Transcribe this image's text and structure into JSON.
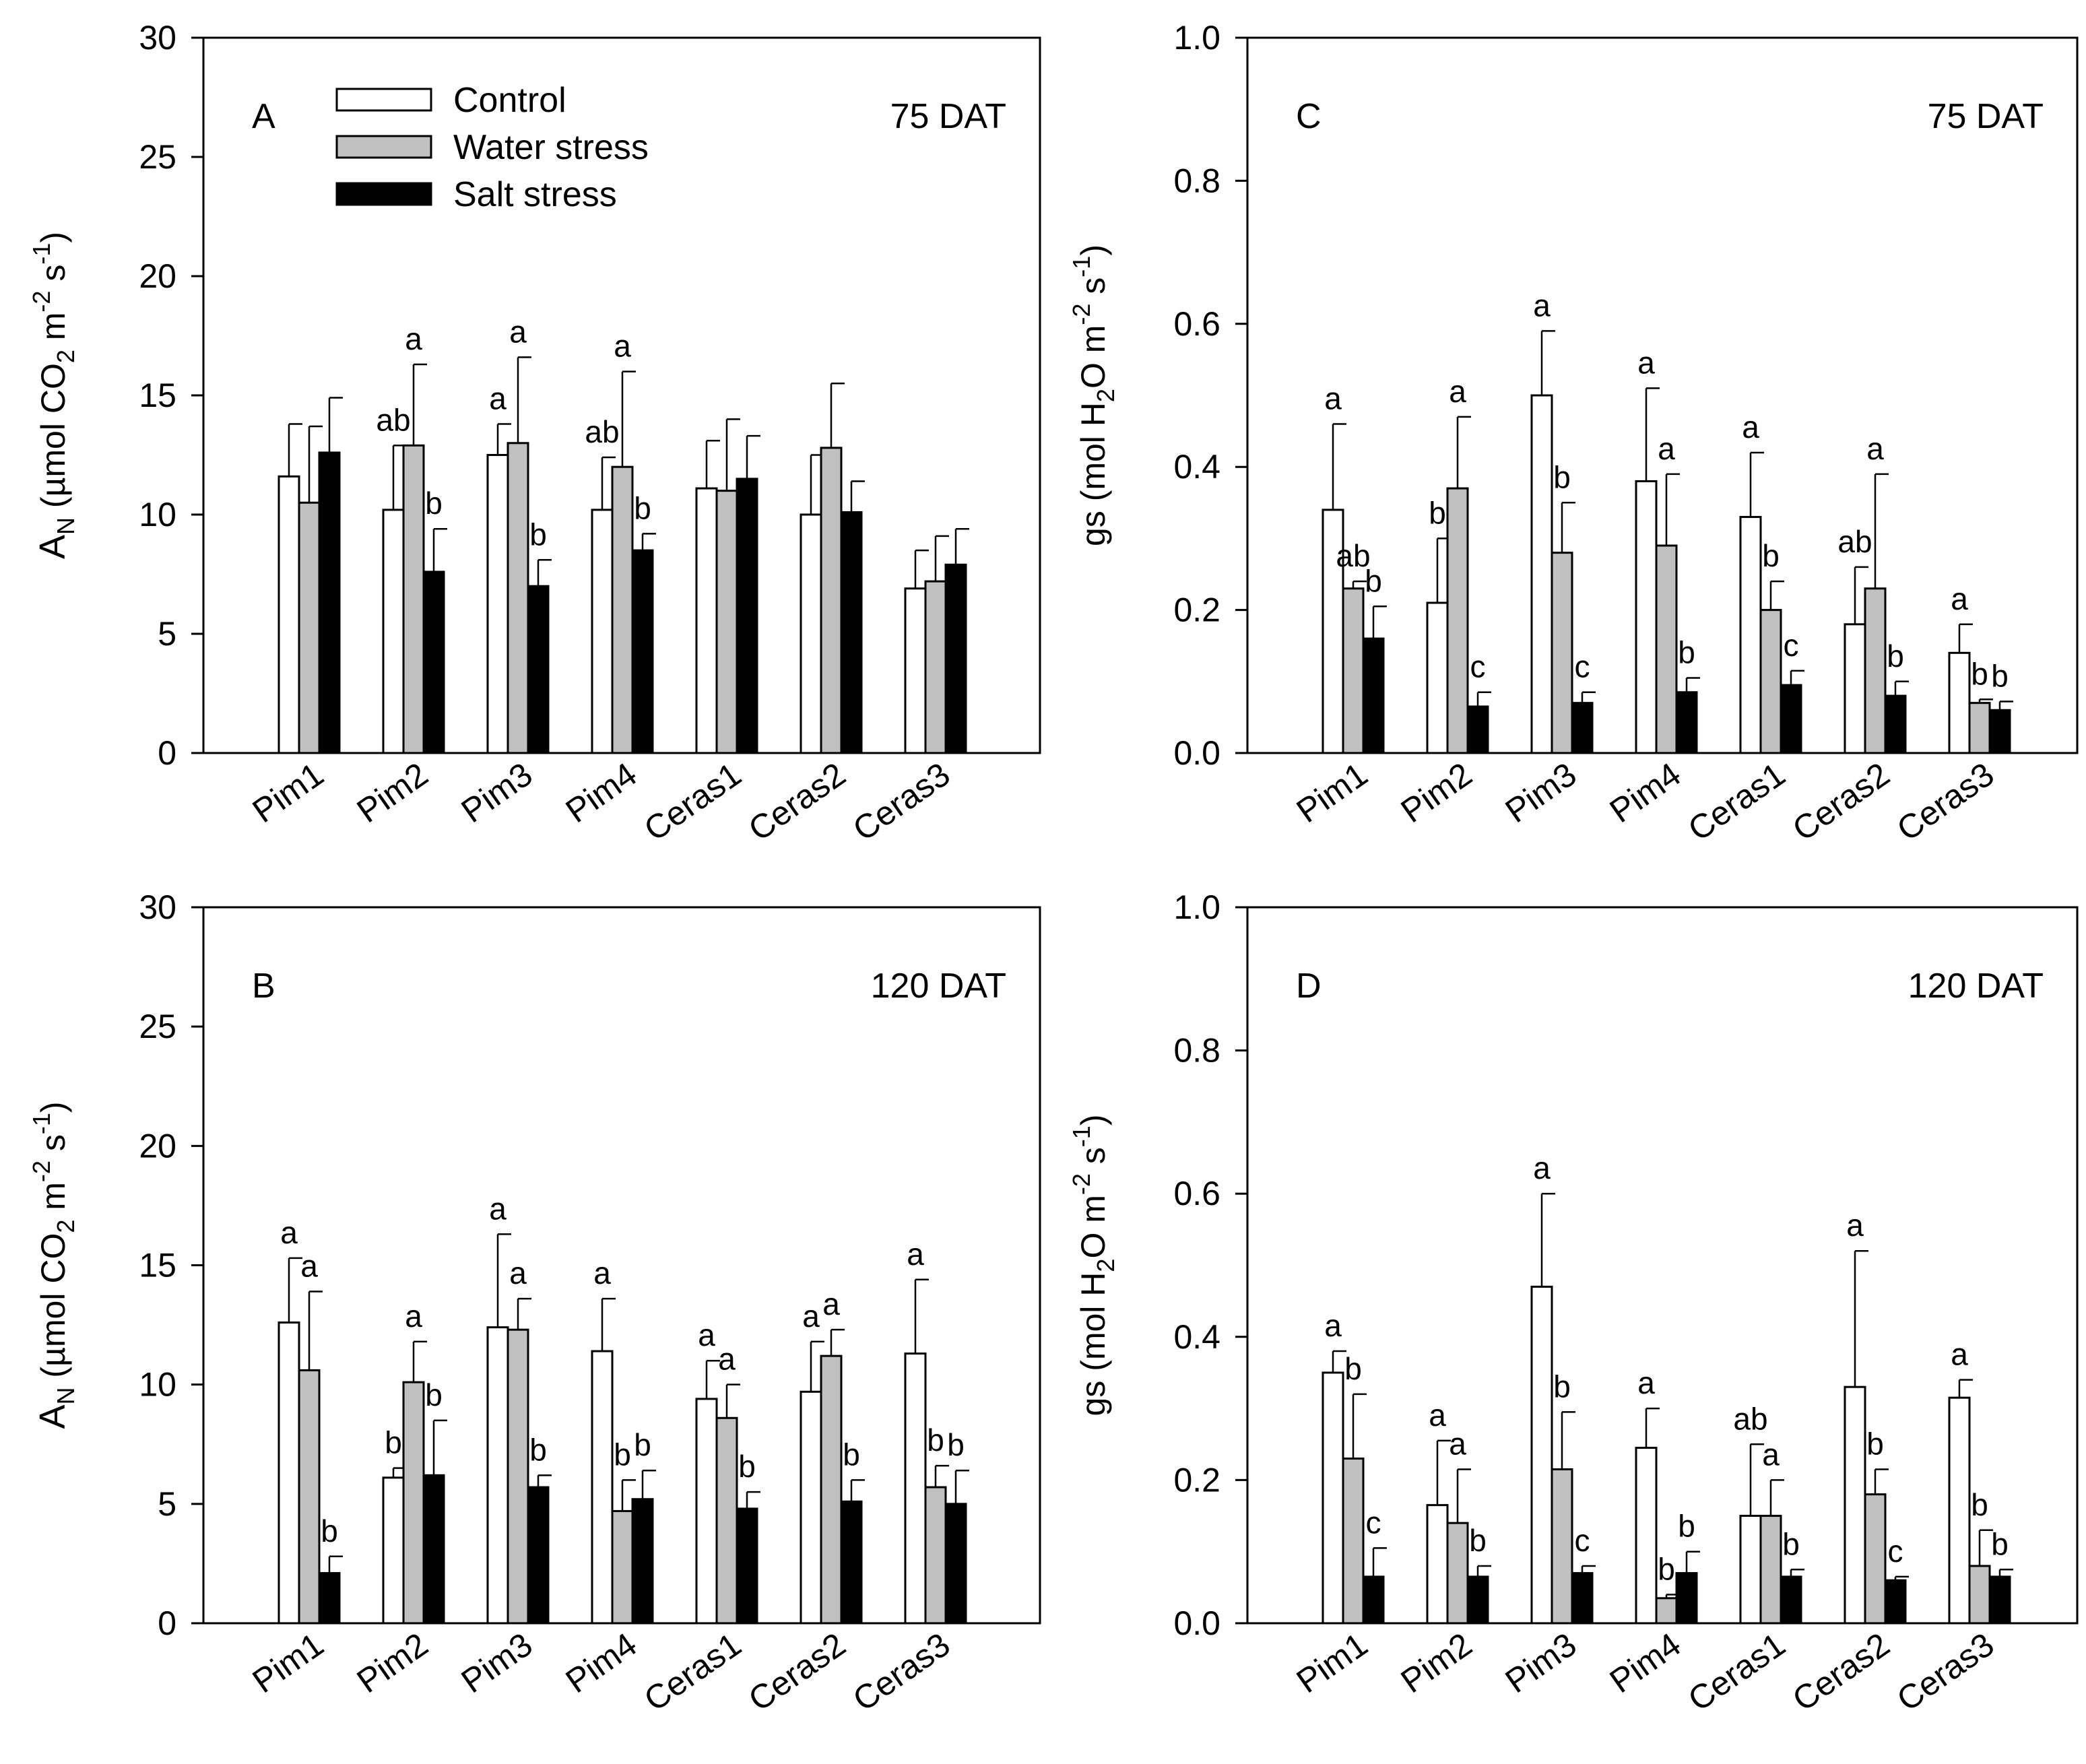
{
  "chart_data": [
    {
      "panel": "A",
      "type": "bar",
      "label": "A",
      "period": "75 DAT",
      "ylabel_main": "A",
      "ylabel_sub": "N",
      "ylabel_rest": " (µmol CO",
      "ylabel_sub2": "2",
      "ylabel_rest2": " m",
      "ylabel_sup1": "-2",
      "ylabel_rest3": " s",
      "ylabel_sup2": "-1",
      "ylabel_end": ")",
      "ylim": [
        0,
        30
      ],
      "yticks": [
        "0",
        "5",
        "10",
        "15",
        "20",
        "25",
        "30"
      ],
      "categories": [
        "Pim1",
        "Pim2",
        "Pim3",
        "Pim4",
        "Ceras1",
        "Ceras2",
        "Ceras3"
      ],
      "series": [
        {
          "name": "Control",
          "values": [
            11.6,
            10.2,
            12.5,
            10.2,
            11.1,
            10.0,
            6.9
          ],
          "errors": [
            2.2,
            2.7,
            1.3,
            2.2,
            2.0,
            2.5,
            1.6
          ],
          "letters": [
            "",
            "ab",
            "a",
            "ab",
            "",
            "",
            ""
          ]
        },
        {
          "name": "Water stress",
          "values": [
            10.5,
            12.9,
            13.0,
            12.0,
            11.0,
            12.8,
            7.2
          ],
          "errors": [
            3.2,
            3.4,
            3.6,
            4.0,
            3.0,
            2.7,
            1.9
          ],
          "letters": [
            "",
            "a",
            "a",
            "a",
            "",
            "",
            ""
          ]
        },
        {
          "name": "Salt stress",
          "values": [
            12.6,
            7.6,
            7.0,
            8.5,
            11.5,
            10.1,
            7.9
          ],
          "errors": [
            2.3,
            1.8,
            1.1,
            0.7,
            1.8,
            1.3,
            1.5
          ],
          "letters": [
            "",
            "b",
            "b",
            "b",
            "",
            "",
            ""
          ]
        }
      ]
    },
    {
      "panel": "C",
      "type": "bar",
      "label": "C",
      "period": "75 DAT",
      "ylim": [
        0,
        1.0
      ],
      "yticks": [
        "0.0",
        "0.2",
        "0.4",
        "0.6",
        "0.8",
        "1.0"
      ],
      "categories": [
        "Pim1",
        "Pim2",
        "Pim3",
        "Pim4",
        "Ceras1",
        "Ceras2",
        "Ceras3"
      ],
      "series": [
        {
          "name": "Control",
          "values": [
            0.34,
            0.21,
            0.5,
            0.38,
            0.33,
            0.18,
            0.14
          ],
          "errors": [
            0.12,
            0.09,
            0.09,
            0.13,
            0.09,
            0.08,
            0.04
          ],
          "letters": [
            "a",
            "b",
            "a",
            "a",
            "a",
            "ab",
            "a"
          ]
        },
        {
          "name": "Water stress",
          "values": [
            0.23,
            0.37,
            0.28,
            0.29,
            0.2,
            0.23,
            0.07
          ],
          "errors": [
            0.01,
            0.1,
            0.07,
            0.1,
            0.04,
            0.16,
            0.005
          ],
          "letters": [
            "ab",
            "a",
            "b",
            "a",
            "b",
            "a",
            "b"
          ]
        },
        {
          "name": "Salt stress",
          "values": [
            0.16,
            0.065,
            0.07,
            0.085,
            0.095,
            0.08,
            0.06
          ],
          "errors": [
            0.045,
            0.02,
            0.015,
            0.02,
            0.02,
            0.02,
            0.012
          ],
          "letters": [
            "b",
            "c",
            "c",
            "b",
            "c",
            "b",
            "b"
          ]
        }
      ]
    },
    {
      "panel": "B",
      "type": "bar",
      "label": "B",
      "period": "120 DAT",
      "ylim": [
        0,
        30
      ],
      "yticks": [
        "0",
        "5",
        "10",
        "15",
        "20",
        "25",
        "30"
      ],
      "categories": [
        "Pim1",
        "Pim2",
        "Pim3",
        "Pim4",
        "Ceras1",
        "Ceras2",
        "Ceras3"
      ],
      "series": [
        {
          "name": "Control",
          "values": [
            12.6,
            6.1,
            12.4,
            11.4,
            9.4,
            9.7,
            11.3
          ],
          "errors": [
            2.7,
            0.4,
            3.9,
            2.2,
            1.6,
            2.1,
            3.1
          ],
          "letters": [
            "a",
            "b",
            "a",
            "a",
            "a",
            "a",
            "a"
          ]
        },
        {
          "name": "Water stress",
          "values": [
            10.6,
            10.1,
            12.3,
            4.7,
            8.6,
            11.2,
            5.7
          ],
          "errors": [
            3.3,
            1.7,
            1.3,
            1.3,
            1.4,
            1.1,
            0.9
          ],
          "letters": [
            "a",
            "a",
            "a",
            "b",
            "a",
            "a",
            "b"
          ]
        },
        {
          "name": "Salt stress",
          "values": [
            2.1,
            6.2,
            5.7,
            5.2,
            4.8,
            5.1,
            5.0
          ],
          "errors": [
            0.7,
            2.3,
            0.5,
            1.2,
            0.7,
            0.9,
            1.4
          ],
          "letters": [
            "b",
            "b",
            "b",
            "b",
            "b",
            "b",
            "b"
          ]
        }
      ]
    },
    {
      "panel": "D",
      "type": "bar",
      "label": "D",
      "period": "120 DAT",
      "ylim": [
        0,
        1.0
      ],
      "yticks": [
        "0.0",
        "0.2",
        "0.4",
        "0.6",
        "0.8",
        "1.0"
      ],
      "categories": [
        "Pim1",
        "Pim2",
        "Pim3",
        "Pim4",
        "Ceras1",
        "Ceras2",
        "Ceras3"
      ],
      "series": [
        {
          "name": "Control",
          "values": [
            0.35,
            0.165,
            0.47,
            0.245,
            0.15,
            0.33,
            0.315
          ],
          "errors": [
            0.03,
            0.09,
            0.13,
            0.055,
            0.1,
            0.19,
            0.025
          ],
          "letters": [
            "a",
            "a",
            "a",
            "a",
            "ab",
            "a",
            "a"
          ]
        },
        {
          "name": "Water stress",
          "values": [
            0.23,
            0.14,
            0.215,
            0.035,
            0.15,
            0.18,
            0.08
          ],
          "errors": [
            0.09,
            0.075,
            0.08,
            0.005,
            0.05,
            0.035,
            0.05
          ],
          "letters": [
            "b",
            "a",
            "b",
            "b",
            "a",
            "b",
            "b"
          ]
        },
        {
          "name": "Salt stress",
          "values": [
            0.065,
            0.065,
            0.07,
            0.07,
            0.065,
            0.06,
            0.065
          ],
          "errors": [
            0.04,
            0.015,
            0.01,
            0.03,
            0.01,
            0.005,
            0.01
          ],
          "letters": [
            "c",
            "b",
            "c",
            "b",
            "b",
            "c",
            "b"
          ]
        }
      ]
    }
  ],
  "legend": [
    {
      "name": "Control",
      "color": "#ffffff"
    },
    {
      "name": "Water stress",
      "color": "#c0c0c0"
    },
    {
      "name": "Salt stress",
      "color": "#000000"
    }
  ],
  "ylabels": {
    "an": {
      "a": "A",
      "n": "N",
      "p1": " (µmol CO",
      "s2": "2",
      "p2": " m",
      "e1": "-2",
      "p3": " s",
      "e2": "-1",
      "p4": ")"
    },
    "gs": {
      "p1": "gs (mol H",
      "s2": "2",
      "p2": "O m",
      "e1": "-2",
      "p3": " s",
      "e2": "-1",
      "p4": ")"
    }
  }
}
